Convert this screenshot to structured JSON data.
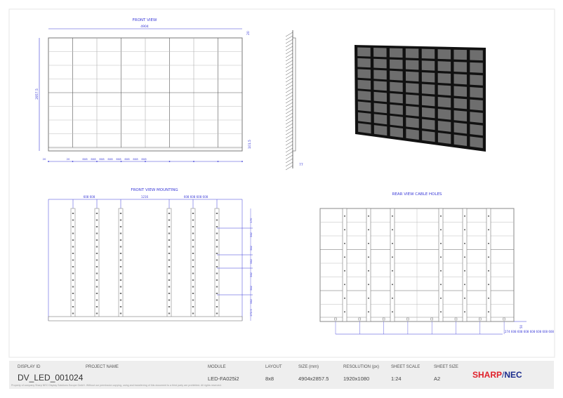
{
  "colors": {
    "dimension": "#3a3ad8",
    "panel": "#6b6b6b",
    "frame": "#111111",
    "brand_red": "#e0202a",
    "brand_blue": "#1a2c8c"
  },
  "front_view": {
    "title": "FRONT VIEW",
    "width": "4904",
    "height": "2857.5",
    "top_offset": "20",
    "bottom_offset": "101.5",
    "bottom_dims": [
      "20",
      "20",
      "608",
      "608",
      "608",
      "608",
      "608",
      "608",
      "608",
      "608"
    ],
    "depth": "77"
  },
  "mounting": {
    "title": "FRONT VIEW MOUNTING",
    "top_left": "608  608",
    "top_center": "1216",
    "top_right": "608  608  608  608",
    "right_dims": [
      "170",
      "342",
      "342",
      "342",
      "342",
      "342",
      "342",
      "272.5"
    ]
  },
  "rear": {
    "title": "REAR VIEW CABLE HOLES",
    "right_dim": "50",
    "bottom_dims": "274  608  608  608  608  608  608  608"
  },
  "title_block": {
    "display_id_label": "DISPLAY ID",
    "display_id": "DV_LED_001024",
    "project_label": "PROJECT NAME",
    "module_label": "MODULE",
    "module": "LED-FA025i2",
    "layout_label": "LAYOUT",
    "layout": "8x8",
    "size_label": "SIZE (mm)",
    "size": "4904x2857.5",
    "resolution_label": "RESOLUTION (px)",
    "resolution": "1920x1080",
    "scale_label": "SHEET SCALE",
    "scale": "1:24",
    "sheet_label": "SHEET SIZE",
    "sheet": "A2",
    "footer": "Property of company Sharp NEC Display Solutions Europe GmbH. Without our permission copying, using and transferring of this document to a third party are prohibited. All rights reserved.",
    "logo_a": "SHARP",
    "logo_sep": "/",
    "logo_b": "NEC"
  }
}
